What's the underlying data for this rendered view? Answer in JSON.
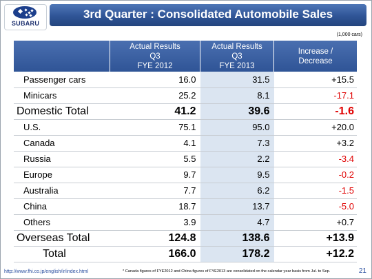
{
  "logo": {
    "text": "SUBARU"
  },
  "title": "3rd Quarter : Consolidated Automobile Sales",
  "unit": "(1,000 cars)",
  "columns": [
    {
      "label_line1": "Actual Results",
      "label_line2": "Q3",
      "label_line3": "FYE 2012"
    },
    {
      "label_line1": "Actual Results",
      "label_line2": "Q3",
      "label_line3": "FYE 2013"
    },
    {
      "label_line1": "Increase /",
      "label_line2": "Decrease",
      "label_line3": ""
    }
  ],
  "rows": [
    {
      "label": "Passenger cars",
      "fye2012": "16.0",
      "fye2013": "31.5",
      "change": "+15.5",
      "negative": false,
      "total": false
    },
    {
      "label": "Minicars",
      "fye2012": "25.2",
      "fye2013": "8.1",
      "change": "-17.1",
      "negative": true,
      "total": false
    },
    {
      "label": "Domestic Total",
      "fye2012": "41.2",
      "fye2013": "39.6",
      "change": "-1.6",
      "negative": true,
      "total": true
    },
    {
      "label": "U.S.",
      "fye2012": "75.1",
      "fye2013": "95.0",
      "change": "+20.0",
      "negative": false,
      "total": false
    },
    {
      "label": "Canada",
      "fye2012": "4.1",
      "fye2013": "7.3",
      "change": "+3.2",
      "negative": false,
      "total": false
    },
    {
      "label": "Russia",
      "fye2012": "5.5",
      "fye2013": "2.2",
      "change": "-3.4",
      "negative": true,
      "total": false
    },
    {
      "label": "Europe",
      "fye2012": "9.7",
      "fye2013": "9.5",
      "change": "-0.2",
      "negative": true,
      "total": false
    },
    {
      "label": "Australia",
      "fye2012": "7.7",
      "fye2013": "6.2",
      "change": "-1.5",
      "negative": true,
      "total": false
    },
    {
      "label": "China",
      "fye2012": "18.7",
      "fye2013": "13.7",
      "change": "-5.0",
      "negative": true,
      "total": false
    },
    {
      "label": "Others",
      "fye2012": "3.9",
      "fye2013": "4.7",
      "change": "+0.7",
      "negative": false,
      "total": false
    },
    {
      "label": "Overseas Total",
      "fye2012": "124.8",
      "fye2013": "138.6",
      "change": "+13.9",
      "negative": false,
      "total": true
    },
    {
      "label": "Total",
      "fye2012": "166.0",
      "fye2013": "178.2",
      "change": "+12.2",
      "negative": false,
      "total": true
    }
  ],
  "footer": {
    "url": "http://www.fhi.co.jp/english/ir/index.html",
    "note": "* Canada figures of FYE2012 and China figures of FYE2013 are consolidated on the calendar year basis from Jul. to Sep.",
    "page": "21"
  },
  "colors": {
    "header_blue": "#2f5496",
    "negative_red": "#e00000",
    "highlight_column": "#dbe5f1"
  }
}
